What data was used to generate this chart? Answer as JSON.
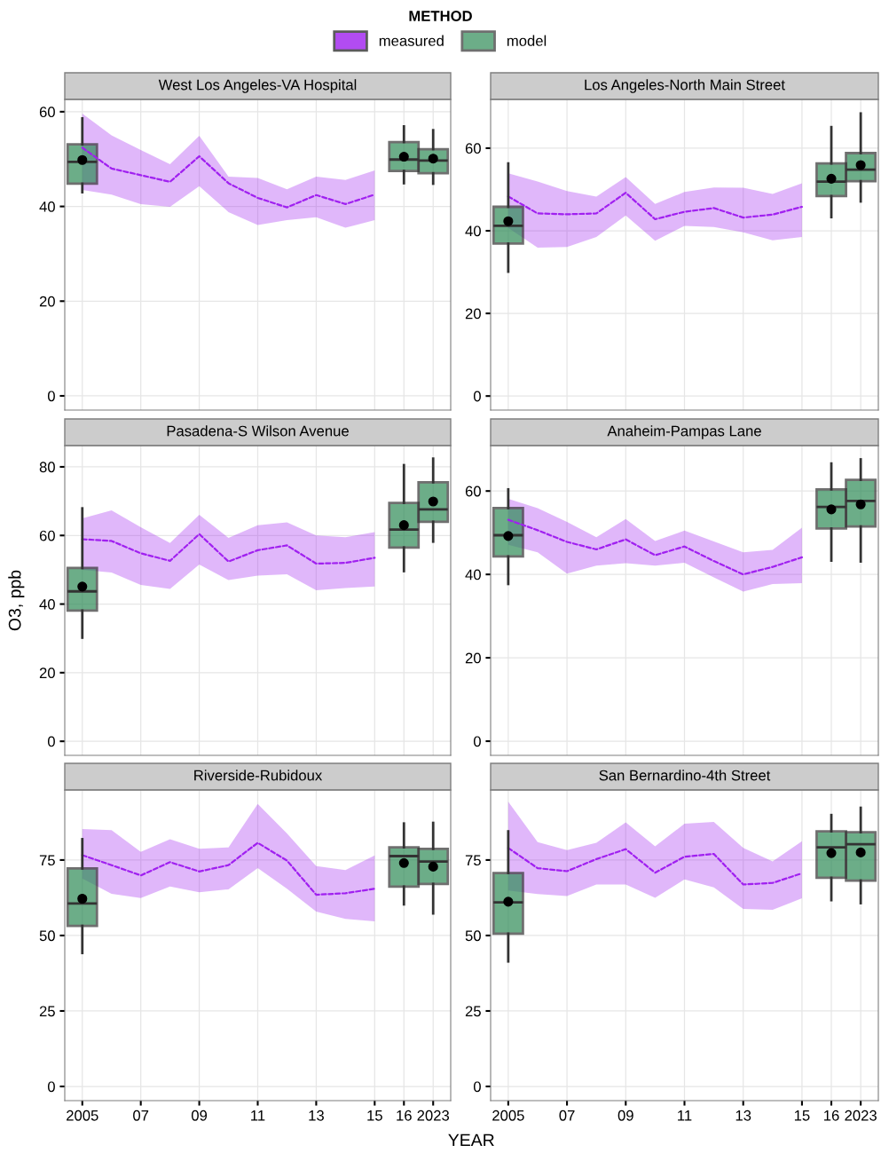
{
  "chart_data": [
    {
      "type": "line",
      "title": "West Los Angeles-VA Hospital",
      "legend": "top",
      "legend_title": "METHOD",
      "grid": true,
      "tick_labels": "y",
      "categories": [
        "2005",
        null,
        "07",
        null,
        "09",
        null,
        "11",
        null,
        "13",
        null,
        "15",
        "16",
        "2023"
      ],
      "ylim": [
        -3,
        62.6
      ],
      "yticks": [
        0,
        20,
        40,
        60
      ],
      "series": [
        {
          "name": "measured",
          "line_style": "dashed",
          "color": "#a020f0",
          "values": [
            52.4,
            48,
            46.6,
            45.2,
            50.6,
            44.9,
            41.8,
            39.8,
            42.4,
            40.5,
            42.5,
            null,
            null
          ],
          "lower": [
            43.5,
            42.5,
            40.5,
            39.9,
            44.3,
            38.8,
            36.1,
            37.1,
            37.7,
            35.5,
            37.1,
            null,
            null
          ],
          "upper": [
            59.6,
            55,
            51.9,
            48.9,
            54.9,
            46.3,
            46,
            43.6,
            46.3,
            45.6,
            47.6,
            null,
            null
          ]
        },
        {
          "name": "model",
          "type": "box",
          "color": "#2e8b57",
          "boxes": [
            {
              "low": 43,
              "q1": 44.8,
              "median": 49.4,
              "q3": 53.1,
              "high": 58.6,
              "mean": 49.8
            },
            null,
            null,
            null,
            null,
            null,
            null,
            null,
            null,
            null,
            null,
            {
              "low": 44.9,
              "q1": 47.5,
              "median": 49.9,
              "q3": 53.6,
              "high": 56.9,
              "mean": 50.5
            },
            {
              "low": 44.8,
              "q1": 47,
              "median": 49.7,
              "q3": 52.1,
              "high": 56.1,
              "mean": 50.1
            }
          ]
        }
      ]
    },
    {
      "type": "line",
      "title": "Los Angeles-North Main Street",
      "grid": true,
      "tick_labels": "y",
      "categories": [
        "2005",
        null,
        "07",
        null,
        "09",
        null,
        "11",
        null,
        "13",
        null,
        "15",
        "16",
        "2023"
      ],
      "ylim": [
        -3.4,
        71.8
      ],
      "yticks": [
        0,
        20,
        40,
        60
      ],
      "series": [
        {
          "line_style": "dashed",
          "color": "#a020f0",
          "values": [
            48.3,
            44.2,
            44,
            44.2,
            49.2,
            42.8,
            44.6,
            45.5,
            43.2,
            43.9,
            45.8,
            null,
            null
          ],
          "lower": [
            40.7,
            35.9,
            36.1,
            38.5,
            43.7,
            37.6,
            41.2,
            40.9,
            39.6,
            37.7,
            38.5,
            null,
            null
          ],
          "upper": [
            53.9,
            51.9,
            49.6,
            48.3,
            53,
            46.5,
            49.4,
            50.5,
            50.4,
            48.9,
            51.5,
            null,
            null
          ]
        },
        {
          "type": "box",
          "color": "#2e8b57",
          "boxes": [
            {
              "low": 30.1,
              "q1": 36.9,
              "median": 41.2,
              "q3": 45.8,
              "high": 56.3,
              "mean": 42.3
            },
            null,
            null,
            null,
            null,
            null,
            null,
            null,
            null,
            null,
            null,
            {
              "low": 43.3,
              "q1": 48.4,
              "median": 51.9,
              "q3": 56.3,
              "high": 65.1,
              "mean": 52.6
            },
            {
              "low": 47.1,
              "q1": 52,
              "median": 54.8,
              "q3": 58.8,
              "high": 68.4,
              "mean": 55.9
            }
          ]
        }
      ]
    },
    {
      "type": "line",
      "title": "Pasadena-S Wilson Avenue",
      "ylabel": "O3, ppb",
      "grid": true,
      "tick_labels": "y",
      "categories": [
        "2005",
        null,
        "07",
        null,
        "09",
        null,
        "11",
        null,
        "13",
        null,
        "15",
        "16",
        "2023"
      ],
      "ylim": [
        -4.1,
        86.2
      ],
      "yticks": [
        0,
        20,
        40,
        60,
        80
      ],
      "series": [
        {
          "line_style": "dashed",
          "color": "#a020f0",
          "values": [
            58.9,
            58.4,
            54.8,
            52.6,
            60.4,
            52.4,
            55.7,
            57.1,
            51.8,
            52,
            53.5,
            null,
            null
          ],
          "lower": [
            50,
            49.2,
            45.6,
            44.4,
            51.5,
            47,
            48.3,
            48.7,
            44,
            44.7,
            45.1,
            null,
            null
          ],
          "upper": [
            65,
            67.3,
            62.4,
            57.8,
            66,
            59.3,
            63,
            63.8,
            60,
            59.5,
            61,
            null,
            null
          ]
        },
        {
          "type": "box",
          "color": "#2e8b57",
          "boxes": [
            {
              "low": 30.2,
              "q1": 38.1,
              "median": 43.7,
              "q3": 50.5,
              "high": 67.9,
              "mean": 45.1
            },
            null,
            null,
            null,
            null,
            null,
            null,
            null,
            null,
            null,
            null,
            {
              "low": 49.6,
              "q1": 56.5,
              "median": 61.7,
              "q3": 69.5,
              "high": 80.5,
              "mean": 63
            },
            {
              "low": 58.2,
              "q1": 64,
              "median": 67.6,
              "q3": 75.5,
              "high": 82.4,
              "mean": 69.9
            }
          ]
        }
      ]
    },
    {
      "type": "line",
      "title": "Anaheim-Pampas Lane",
      "grid": true,
      "tick_labels": "y",
      "categories": [
        "2005",
        null,
        "07",
        null,
        "09",
        null,
        "11",
        null,
        "13",
        null,
        "15",
        "16",
        "2023"
      ],
      "ylim": [
        -3.4,
        70.9
      ],
      "yticks": [
        0,
        20,
        40,
        60
      ],
      "series": [
        {
          "line_style": "dashed",
          "color": "#a020f0",
          "values": [
            53.1,
            50.6,
            47.8,
            46,
            48.4,
            44.6,
            46.7,
            43.2,
            40,
            41.8,
            44.1,
            null,
            null
          ],
          "lower": [
            47.1,
            45.3,
            40.2,
            42.1,
            42.7,
            42.1,
            42.8,
            39.3,
            35.9,
            37.7,
            37.9,
            null,
            null
          ],
          "upper": [
            58.1,
            55.9,
            52.6,
            48.9,
            53.3,
            48,
            50.5,
            47.9,
            45.3,
            45.9,
            51.2,
            null,
            null
          ]
        },
        {
          "type": "box",
          "color": "#2e8b57",
          "boxes": [
            {
              "low": 37.7,
              "q1": 44.3,
              "median": 49.4,
              "q3": 55.9,
              "high": 60.4,
              "mean": 49.2
            },
            null,
            null,
            null,
            null,
            null,
            null,
            null,
            null,
            null,
            null,
            {
              "low": 43.3,
              "q1": 51,
              "median": 56.2,
              "q3": 60.4,
              "high": 66.6,
              "mean": 55.6
            },
            {
              "low": 43.1,
              "q1": 51.5,
              "median": 57.6,
              "q3": 62.7,
              "high": 67.6,
              "mean": 56.8
            }
          ]
        }
      ]
    },
    {
      "type": "line",
      "title": "Riverside-Rubidoux",
      "xlabel": "YEAR",
      "grid": true,
      "categories": [
        "2005",
        null,
        "07",
        null,
        "09",
        null,
        "11",
        null,
        "13",
        null,
        "15",
        "16",
        "2023"
      ],
      "ylim": [
        -4.7,
        98.2
      ],
      "yticks": [
        0,
        25,
        50,
        75
      ],
      "series": [
        {
          "line_style": "dashed",
          "color": "#a020f0",
          "values": [
            76.6,
            73.3,
            69.9,
            74.3,
            71.2,
            73.3,
            80.7,
            74.8,
            63.5,
            64,
            65.5,
            null,
            null
          ],
          "lower": [
            68.9,
            63.8,
            62.4,
            66.2,
            64.3,
            65.3,
            72.3,
            65.5,
            57.9,
            55.5,
            54.7,
            null,
            null
          ],
          "upper": [
            85.3,
            84.9,
            77.7,
            81.9,
            78.7,
            79.2,
            93.6,
            83.8,
            73,
            71.7,
            76.5,
            null,
            null
          ]
        },
        {
          "type": "box",
          "color": "#2e8b57",
          "boxes": [
            {
              "low": 44.2,
              "q1": 53.2,
              "median": 60.6,
              "q3": 72.2,
              "high": 81.9,
              "mean": 62.2
            },
            null,
            null,
            null,
            null,
            null,
            null,
            null,
            null,
            null,
            null,
            {
              "low": 60.3,
              "q1": 66.2,
              "median": 76.3,
              "q3": 79.2,
              "high": 87.1,
              "mean": 74
            },
            {
              "low": 57.3,
              "q1": 67.1,
              "median": 74.5,
              "q3": 78.7,
              "high": 87.3,
              "mean": 72.8
            }
          ]
        }
      ]
    },
    {
      "type": "line",
      "title": "San Bernardino-4th Street",
      "grid": true,
      "categories": [
        "2005",
        null,
        "07",
        null,
        "09",
        null,
        "11",
        null,
        "13",
        null,
        "15",
        "16",
        "2023"
      ],
      "ylim": [
        -4.7,
        98.2
      ],
      "yticks": [
        0,
        25,
        50,
        75
      ],
      "series": [
        {
          "line_style": "dashed",
          "color": "#a020f0",
          "values": [
            79,
            72.3,
            71.3,
            75.3,
            78.6,
            70.8,
            76.1,
            77,
            66.9,
            67.4,
            70.6,
            null,
            null
          ],
          "lower": [
            64.9,
            63.7,
            63.1,
            66.9,
            66.9,
            62.5,
            68.6,
            65.9,
            58.8,
            58.5,
            62.3,
            null,
            null
          ],
          "upper": [
            94.3,
            80.9,
            78.3,
            80.7,
            87.5,
            79.5,
            87,
            87.6,
            79,
            74.5,
            81.2,
            null,
            null
          ]
        },
        {
          "type": "box",
          "color": "#2e8b57",
          "boxes": [
            {
              "low": 41.4,
              "q1": 50.6,
              "median": 61,
              "q3": 70.7,
              "high": 84.5,
              "mean": 61.2
            },
            null,
            null,
            null,
            null,
            null,
            null,
            null,
            null,
            null,
            null,
            {
              "low": 61.7,
              "q1": 69.1,
              "median": 79.2,
              "q3": 84.5,
              "high": 89.9,
              "mean": 77.3
            },
            {
              "low": 60.7,
              "q1": 68.2,
              "median": 80.2,
              "q3": 84.2,
              "high": 92.3,
              "mean": 77.5
            }
          ]
        }
      ]
    }
  ]
}
